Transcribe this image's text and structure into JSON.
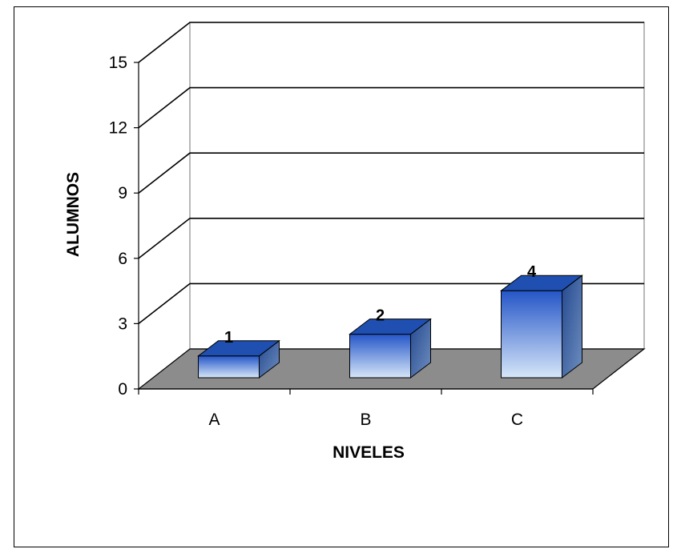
{
  "chart_data": {
    "type": "bar",
    "title": "",
    "xlabel": "NIVELES",
    "ylabel": "ALUMNOS",
    "categories": [
      "A",
      "B",
      "C"
    ],
    "values": [
      1,
      2,
      4
    ],
    "data_labels": [
      "1",
      "2",
      "4"
    ],
    "ylim": [
      0,
      15
    ],
    "yticks": [
      "0",
      "3",
      "6",
      "9",
      "12",
      "15"
    ],
    "grid": true,
    "legend": "none",
    "style": "3d-column",
    "colors": {
      "bar_top": "#1f4fb0",
      "bar_front_dark": "#2556c8",
      "bar_front_light": "#d6e6f8",
      "floor": "#8c8c8c",
      "gridline": "#000000"
    }
  }
}
